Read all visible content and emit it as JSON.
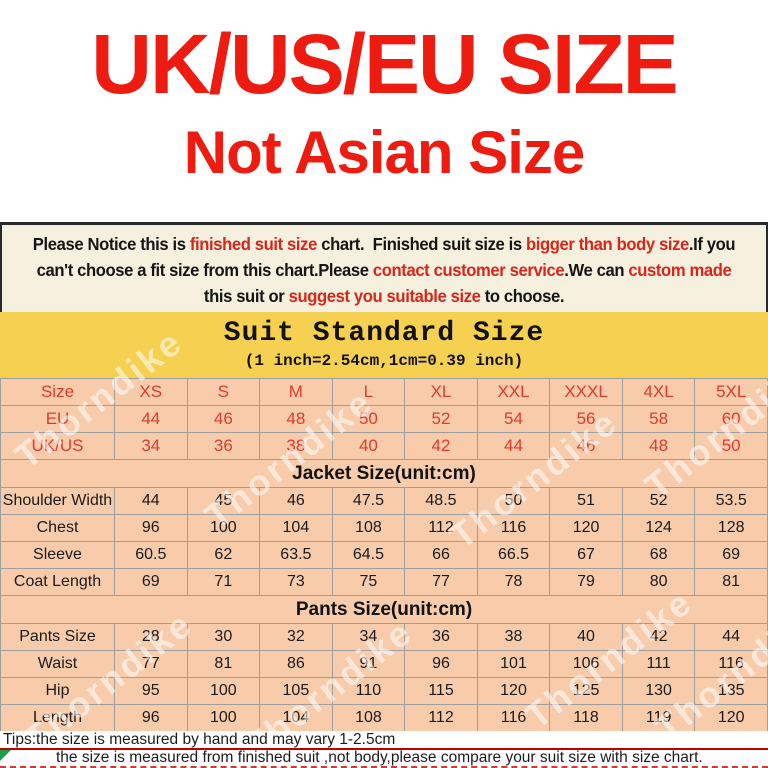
{
  "heading": {
    "line1": "UK/US/EU SIZE",
    "line2": "Not Asian Size"
  },
  "notice": {
    "lines": [
      [
        {
          "t": "Please Notice this is ",
          "c": "b"
        },
        {
          "t": "finished suit size",
          "c": "r"
        },
        {
          "t": " chart.  Finished suit size is ",
          "c": "b"
        },
        {
          "t": "bigger than body size",
          "c": "r"
        },
        {
          "t": ".If you",
          "c": "b"
        }
      ],
      [
        {
          "t": "can't choose a fit size from this chart.Please ",
          "c": "b"
        },
        {
          "t": "contact customer service",
          "c": "r"
        },
        {
          "t": ".We can ",
          "c": "b"
        },
        {
          "t": "custom made",
          "c": "r"
        }
      ],
      [
        {
          "t": "this suit or ",
          "c": "b"
        },
        {
          "t": "suggest you suitable size",
          "c": "r"
        },
        {
          "t": " to choose.",
          "c": "b"
        }
      ]
    ]
  },
  "band": {
    "title": "Suit Standard Size",
    "subtitle": "(1 inch=2.54cm,1cm=0.39 inch)"
  },
  "watermark": {
    "text": "Thorndike"
  },
  "tips": {
    "line1": "Tips:the size is measured by hand and may vary 1-2.5cm",
    "line2": "the size is measured from finished suit ,not body,please compare your suit size with size chart."
  },
  "colors": {
    "heading_red": "#ed1b10",
    "notice_bg": "#f5f1de",
    "band_yellow": "#f6d050",
    "table_peach": "#f8cbaa",
    "grid_gray": "#9e9e9e",
    "table_red": "#e23a2e",
    "underline_red": "#c00000",
    "corner_green": "#1f9d4f"
  },
  "chart_data": {
    "type": "table",
    "title": "Suit Standard Size",
    "subtitle": "(1 inch=2.54cm,1cm=0.39 inch)",
    "columns": [
      "Size",
      "XS",
      "S",
      "M",
      "L",
      "XL",
      "XXL",
      "XXXL",
      "4XL",
      "5XL"
    ],
    "sections": [
      {
        "kind": "row",
        "style": "red",
        "cells": [
          "Size",
          "XS",
          "S",
          "M",
          "L",
          "XL",
          "XXL",
          "XXXL",
          "4XL",
          "5XL"
        ]
      },
      {
        "kind": "row",
        "style": "red",
        "cells": [
          "EU",
          "44",
          "46",
          "48",
          "50",
          "52",
          "54",
          "56",
          "58",
          "60"
        ]
      },
      {
        "kind": "row",
        "style": "red",
        "cells": [
          "UK/US",
          "34",
          "36",
          "38",
          "40",
          "42",
          "44",
          "46",
          "48",
          "50"
        ]
      },
      {
        "kind": "header",
        "text": "Jacket Size(unit:cm)"
      },
      {
        "kind": "row",
        "style": "black",
        "cells": [
          "Shoulder Width",
          "44",
          "45",
          "46",
          "47.5",
          "48.5",
          "50",
          "51",
          "52",
          "53.5"
        ]
      },
      {
        "kind": "row",
        "style": "black",
        "cells": [
          "Chest",
          "96",
          "100",
          "104",
          "108",
          "112",
          "116",
          "120",
          "124",
          "128"
        ]
      },
      {
        "kind": "row",
        "style": "black",
        "cells": [
          "Sleeve",
          "60.5",
          "62",
          "63.5",
          "64.5",
          "66",
          "66.5",
          "67",
          "68",
          "69"
        ]
      },
      {
        "kind": "row",
        "style": "black",
        "cells": [
          "Coat Length",
          "69",
          "71",
          "73",
          "75",
          "77",
          "78",
          "79",
          "80",
          "81"
        ]
      },
      {
        "kind": "header",
        "text": "Pants Size(unit:cm)"
      },
      {
        "kind": "row",
        "style": "black",
        "cells": [
          "Pants Size",
          "28",
          "30",
          "32",
          "34",
          "36",
          "38",
          "40",
          "42",
          "44"
        ]
      },
      {
        "kind": "row",
        "style": "black",
        "cells": [
          "Waist",
          "77",
          "81",
          "86",
          "91",
          "96",
          "101",
          "106",
          "111",
          "116"
        ]
      },
      {
        "kind": "row",
        "style": "black",
        "cells": [
          "Hip",
          "95",
          "100",
          "105",
          "110",
          "115",
          "120",
          "125",
          "130",
          "135"
        ]
      },
      {
        "kind": "row",
        "style": "black",
        "cells": [
          "Length",
          "96",
          "100",
          "104",
          "108",
          "112",
          "116",
          "118",
          "119",
          "120"
        ]
      }
    ],
    "notes": [
      "Tips:the size is measured by hand and may vary 1-2.5cm",
      "the size is measured from finished suit ,not body,please compare your suit size with size chart."
    ]
  }
}
